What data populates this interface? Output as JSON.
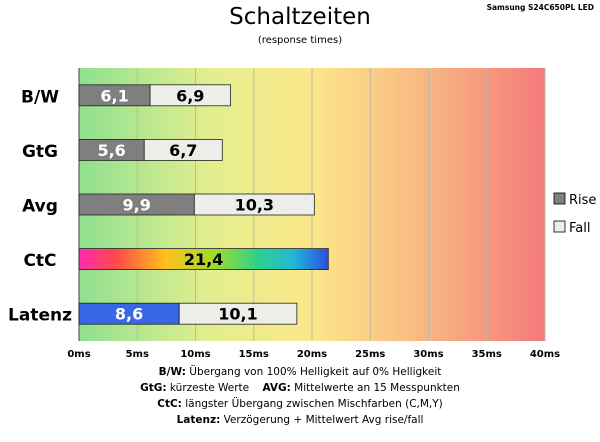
{
  "header": {
    "title": "Schaltzeiten",
    "subtitle": "(response times)",
    "model": "Samsung S24C650PL LED"
  },
  "colors": {
    "rise": "#7f7f7f",
    "fall": "#ededea",
    "latency_rise": "#3a66e8",
    "gradient_bg": [
      "#8fe08f",
      "#e3ee8f",
      "#fbe88a",
      "#f8b582",
      "#f47a7a"
    ]
  },
  "chart_data": {
    "type": "bar",
    "orientation": "horizontal",
    "stacked": true,
    "categories": [
      "B/W",
      "GtG",
      "Avg",
      "CtC",
      "Latenz"
    ],
    "series": [
      {
        "name": "Rise",
        "values": [
          6.1,
          5.6,
          9.9,
          null,
          8.6
        ]
      },
      {
        "name": "Fall",
        "values": [
          6.9,
          6.7,
          10.3,
          null,
          10.1
        ]
      }
    ],
    "single": {
      "CtC": 21.4
    },
    "value_labels": {
      "rise": [
        "6,1",
        "5,6",
        "9,9",
        "",
        "8,6"
      ],
      "fall": [
        "6,9",
        "6,7",
        "10,3",
        "",
        "10,1"
      ],
      "single": "21,4"
    },
    "xlim": [
      0,
      40
    ],
    "xticks": [
      "0ms",
      "5ms",
      "10ms",
      "15ms",
      "20ms",
      "25ms",
      "30ms",
      "35ms",
      "40ms"
    ],
    "grid": true,
    "legend_position": "right"
  },
  "notes": [
    {
      "key": "B/W:",
      "text": " Übergang von 100% Helligkeit auf 0% Helligkeit"
    },
    {
      "key": "GtG:",
      "text": " kürzeste  Werte",
      "key2": "AVG:",
      "text2": " Mittelwerte  an 15 Messpunkten"
    },
    {
      "key": "CtC:",
      "text": " längster Übergang  zwischen Mischfarben (C,M,Y)"
    },
    {
      "key": "Latenz:",
      "text": " Verzögerung  + Mittelwert Avg rise/fall"
    }
  ]
}
